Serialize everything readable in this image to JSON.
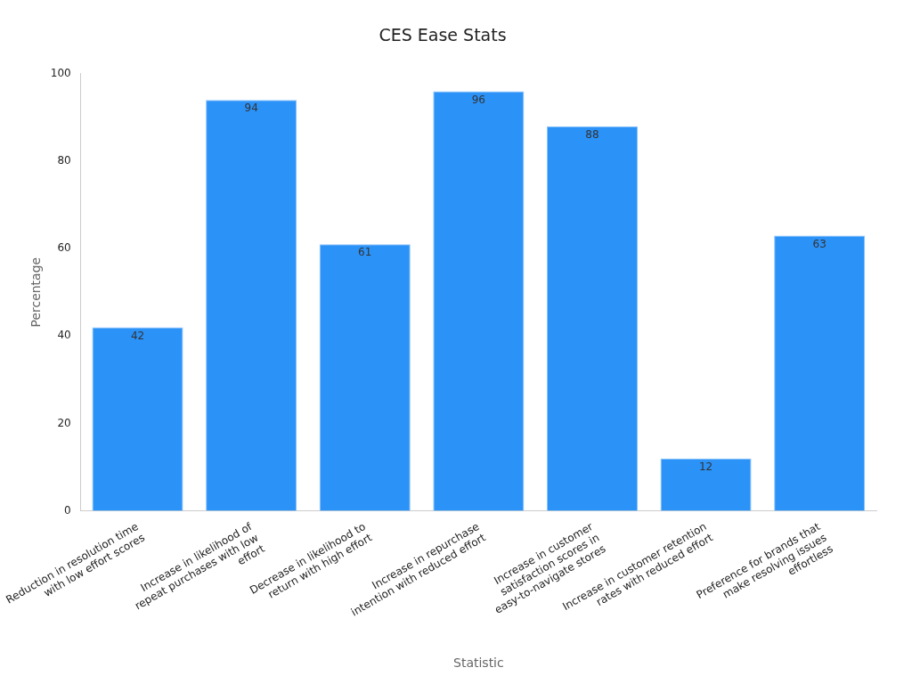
{
  "chart_data": {
    "type": "bar",
    "title": "CES Ease Stats",
    "xlabel": "Statistic",
    "ylabel": "Percentage",
    "categories": [
      "Reduction in resolution time with low effort scores",
      "Increase in likelihood of repeat purchases with low effort",
      "Decrease in likelihood to return with high effort",
      "Increase in repurchase intention with reduced effort",
      "Increase in customer satisfaction scores in easy-to-navigate stores",
      "Increase in customer retention rates with reduced effort",
      "Preference for brands that make resolving issues effortless"
    ],
    "values": [
      42,
      94,
      61,
      96,
      88,
      12,
      63
    ],
    "color": "#2b92f8",
    "ylim": [
      0,
      100
    ],
    "yticks": [
      0,
      20,
      40,
      60,
      80,
      100
    ],
    "grid": false,
    "data_labels": true
  }
}
